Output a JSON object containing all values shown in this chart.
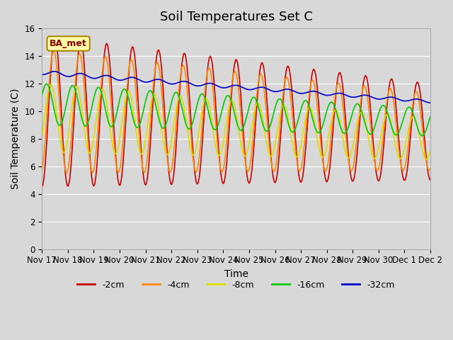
{
  "title": "Soil Temperatures Set C",
  "xlabel": "Time",
  "ylabel": "Soil Temperature (C)",
  "ylim": [
    0,
    16
  ],
  "yticks": [
    0,
    2,
    4,
    6,
    8,
    10,
    12,
    14,
    16
  ],
  "xtick_labels": [
    "Nov 17",
    "Nov 18",
    "Nov 19",
    "Nov 20",
    "Nov 21",
    "Nov 22",
    "Nov 23",
    "Nov 24",
    "Nov 25",
    "Nov 26",
    "Nov 27",
    "Nov 28",
    "Nov 29",
    "Nov 30",
    "Dec 1",
    "Dec 2"
  ],
  "legend_labels": [
    "-2cm",
    "-4cm",
    "-8cm",
    "-16cm",
    "-32cm"
  ],
  "legend_colors": [
    "#cc0000",
    "#ff8800",
    "#dddd00",
    "#00cc00",
    "#0000cc"
  ],
  "plot_bg_color": "#d8d8d8",
  "annotation_text": "BA_met",
  "annotation_bg": "#ffffaa",
  "annotation_border": "#aa8800",
  "annotation_text_color": "#880000",
  "title_fontsize": 13,
  "axis_label_fontsize": 10,
  "tick_fontsize": 8.5
}
